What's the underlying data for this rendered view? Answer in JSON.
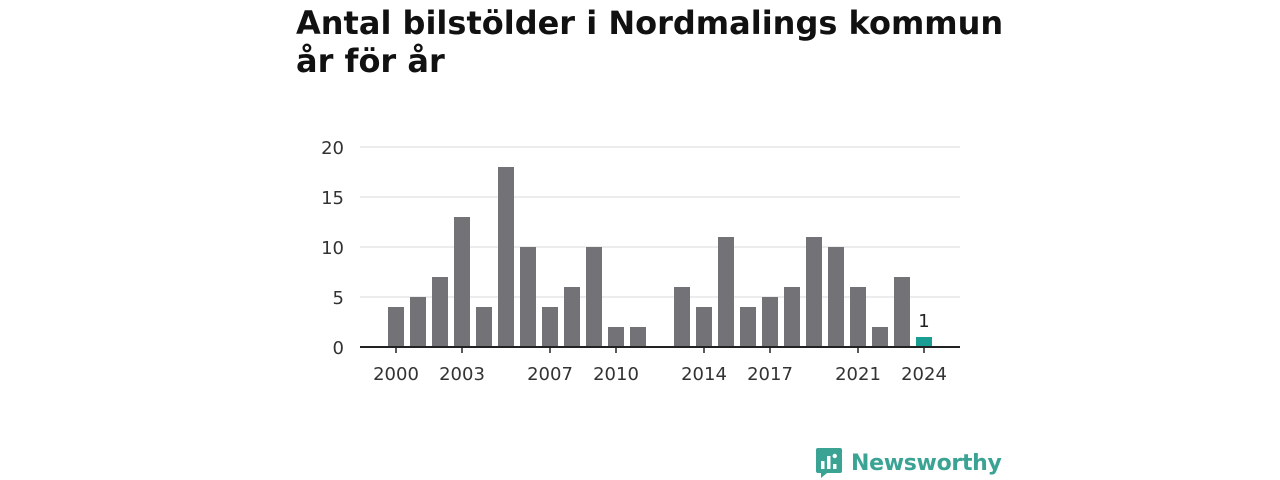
{
  "title": "Antal bilstölder i Nordmalings kommun år för år",
  "brand": {
    "name": "Newsworthy",
    "color": "#3aa394",
    "icon": "newsworthy-logo-icon"
  },
  "colors": {
    "bar": "#737277",
    "highlight": "#1a9e94",
    "grid": "#d9d9d9",
    "axis": "#222222"
  },
  "chart_data": {
    "type": "bar",
    "title": "Antal bilstölder i Nordmalings kommun år för år",
    "xlabel": "",
    "ylabel": "",
    "ylim": [
      0,
      20
    ],
    "yticks": [
      0,
      5,
      10,
      15,
      20
    ],
    "xticks": [
      "2000",
      "2003",
      "2007",
      "2010",
      "2014",
      "2017",
      "2021",
      "2024"
    ],
    "categories": [
      "2000",
      "2001",
      "2002",
      "2003",
      "2004",
      "2005",
      "2006",
      "2007",
      "2008",
      "2009",
      "2010",
      "2011",
      "2012",
      "2013",
      "2014",
      "2015",
      "2016",
      "2017",
      "2018",
      "2019",
      "2020",
      "2021",
      "2022",
      "2023",
      "2024"
    ],
    "values": [
      4,
      5,
      7,
      13,
      4,
      18,
      10,
      4,
      6,
      10,
      2,
      2,
      null,
      6,
      4,
      11,
      4,
      5,
      6,
      11,
      10,
      6,
      2,
      7,
      1
    ],
    "highlight": {
      "category": "2024",
      "label": "1"
    },
    "grid": true,
    "legend": "none"
  }
}
